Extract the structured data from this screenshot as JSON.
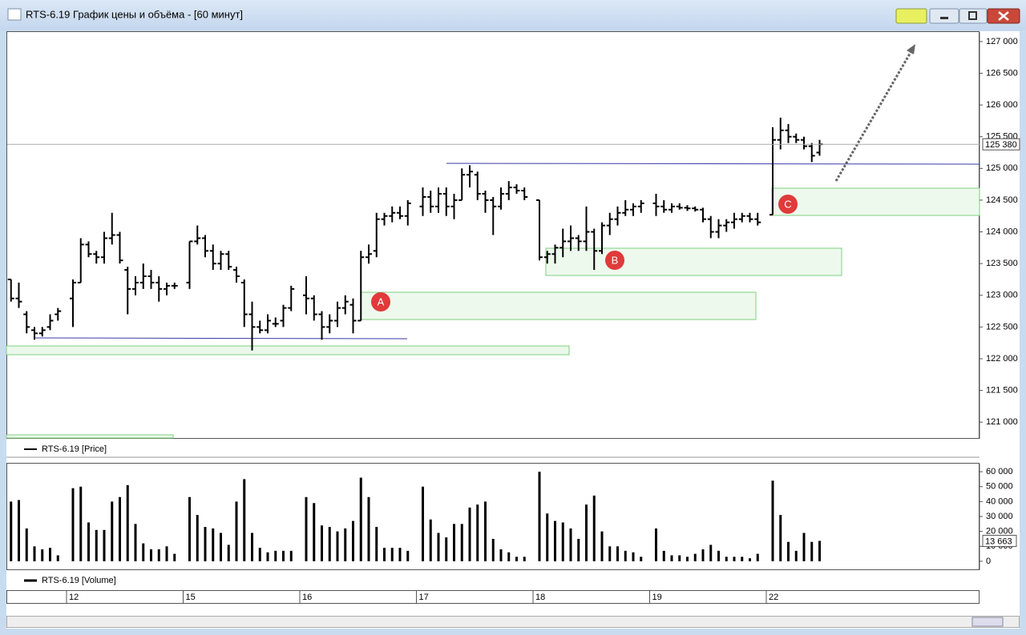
{
  "window": {
    "title": "RTS-6.19 График цены и объёма - [60 минут]"
  },
  "annotations": {
    "labels": [
      "A",
      "B",
      "C"
    ]
  },
  "x_labels": [
    "12",
    "15",
    "16",
    "17",
    "18",
    "19",
    "22"
  ],
  "chart_data": [
    {
      "type": "ohlc",
      "legend": "RTS-6.19 [Price]",
      "ylim": [
        120750,
        127150
      ],
      "yticks": [
        {
          "value": 121000,
          "label": "121 000"
        },
        {
          "value": 121500,
          "label": "121 500"
        },
        {
          "value": 122000,
          "label": "122 000"
        },
        {
          "value": 122500,
          "label": "122 500"
        },
        {
          "value": 123000,
          "label": "123 000"
        },
        {
          "value": 123500,
          "label": "123 500"
        },
        {
          "value": 124000,
          "label": "124 000"
        },
        {
          "value": 124500,
          "label": "124 500"
        },
        {
          "value": 125000,
          "label": "125 000"
        },
        {
          "value": 125500,
          "label": "125 500"
        },
        {
          "value": 126000,
          "label": "126 000"
        },
        {
          "value": 126500,
          "label": "126 500"
        },
        {
          "value": 127000,
          "label": "127 000"
        }
      ],
      "last_price": {
        "value": 125380,
        "label": "125 380"
      },
      "color": "#000000",
      "sessions": [
        [
          [
            123250,
            123250,
            122900,
            122950
          ],
          [
            122950,
            123200,
            122800,
            122900
          ],
          [
            122700,
            122750,
            122400,
            122500
          ],
          [
            122450,
            122500,
            122300,
            122400
          ],
          [
            122400,
            122500,
            122350,
            122450
          ],
          [
            122500,
            122700,
            122450,
            122600
          ],
          [
            122700,
            122800,
            122600,
            122750
          ]
        ],
        [
          [
            122950,
            123250,
            122500,
            123200
          ],
          [
            123200,
            123900,
            123200,
            123800
          ],
          [
            123800,
            123850,
            123600,
            123650
          ],
          [
            123650,
            123700,
            123500,
            123600
          ],
          [
            123600,
            124000,
            123500,
            123900
          ],
          [
            123900,
            124300,
            123800,
            123950
          ],
          [
            123950,
            124000,
            123500,
            123550
          ],
          [
            123400,
            123450,
            122700,
            123100
          ],
          [
            123100,
            123300,
            123000,
            123200
          ],
          [
            123200,
            123500,
            123100,
            123300
          ],
          [
            123300,
            123400,
            123100,
            123200
          ],
          [
            123200,
            123300,
            122900,
            123100
          ],
          [
            123100,
            123200,
            123000,
            123150
          ],
          [
            123150,
            123200,
            123100,
            123150
          ]
        ],
        [
          [
            123200,
            123850,
            123100,
            123850
          ],
          [
            123850,
            124100,
            123800,
            123900
          ],
          [
            123900,
            123950,
            123600,
            123700
          ],
          [
            123700,
            123800,
            123400,
            123500
          ],
          [
            123500,
            123700,
            123400,
            123650
          ],
          [
            123650,
            123700,
            123400,
            123450
          ],
          [
            123400,
            123450,
            123200,
            123300
          ],
          [
            123200,
            123250,
            122500,
            122700
          ],
          [
            122700,
            122900,
            122130,
            122500
          ],
          [
            122500,
            122600,
            122400,
            122450
          ],
          [
            122450,
            122700,
            122400,
            122600
          ],
          [
            122550,
            122650,
            122500,
            122550
          ],
          [
            122600,
            122850,
            122500,
            122800
          ],
          [
            122800,
            123150,
            122750,
            123100
          ]
        ],
        [
          [
            123000,
            123300,
            122700,
            122950
          ],
          [
            122950,
            123000,
            122600,
            122700
          ],
          [
            122700,
            122750,
            122300,
            122500
          ],
          [
            122500,
            122700,
            122400,
            122600
          ],
          [
            122600,
            122900,
            122500,
            122800
          ],
          [
            122800,
            123000,
            122700,
            122900
          ],
          [
            122850,
            122950,
            122400,
            122600
          ],
          [
            122600,
            123700,
            122600,
            123600
          ],
          [
            123600,
            123800,
            123500,
            123650
          ],
          [
            123700,
            124300,
            123600,
            124200
          ],
          [
            124200,
            124300,
            124100,
            124250
          ],
          [
            124250,
            124400,
            124150,
            124300
          ],
          [
            124300,
            124400,
            124200,
            124250
          ],
          [
            124250,
            124500,
            124100,
            124450
          ]
        ],
        [
          [
            124400,
            124700,
            124250,
            124550
          ],
          [
            124550,
            124650,
            124300,
            124400
          ],
          [
            124400,
            124700,
            124300,
            124600
          ],
          [
            124600,
            124700,
            124250,
            124400
          ],
          [
            124400,
            124600,
            124200,
            124500
          ],
          [
            124500,
            125000,
            124500,
            124900
          ],
          [
            124900,
            125050,
            124700,
            124950
          ],
          [
            124900,
            124950,
            124500,
            124600
          ],
          [
            124600,
            124650,
            124300,
            124500
          ],
          [
            124500,
            124550,
            123950,
            124400
          ],
          [
            124400,
            124700,
            124350,
            124600
          ],
          [
            124600,
            124800,
            124500,
            124700
          ],
          [
            124700,
            124750,
            124600,
            124650
          ],
          [
            124650,
            124700,
            124500,
            124550
          ]
        ],
        [
          [
            124500,
            124500,
            123550,
            123600
          ],
          [
            123600,
            123700,
            123500,
            123650
          ],
          [
            123650,
            123800,
            123500,
            123750
          ],
          [
            123750,
            124050,
            123600,
            123850
          ],
          [
            123850,
            124100,
            123700,
            123900
          ],
          [
            123900,
            123950,
            123700,
            123850
          ],
          [
            123850,
            124400,
            123700,
            124000
          ],
          [
            124000,
            124050,
            123400,
            123700
          ],
          [
            123700,
            124150,
            123650,
            124100
          ],
          [
            124100,
            124300,
            123950,
            124200
          ],
          [
            124200,
            124400,
            124100,
            124300
          ],
          [
            124300,
            124500,
            124250,
            124350
          ],
          [
            124350,
            124450,
            124250,
            124400
          ],
          [
            124400,
            124500,
            124300,
            124450
          ]
        ],
        [
          [
            124450,
            124600,
            124250,
            124400
          ],
          [
            124400,
            124500,
            124300,
            124350
          ],
          [
            124350,
            124450,
            124300,
            124400
          ],
          [
            124400,
            124450,
            124350,
            124380
          ],
          [
            124380,
            124420,
            124330,
            124370
          ],
          [
            124370,
            124400,
            124320,
            124350
          ],
          [
            124350,
            124380,
            124150,
            124200
          ],
          [
            124200,
            124250,
            123900,
            124000
          ],
          [
            124000,
            124200,
            123900,
            124100
          ],
          [
            124100,
            124200,
            124000,
            124150
          ],
          [
            124150,
            124300,
            124050,
            124200
          ],
          [
            124200,
            124300,
            124150,
            124250
          ],
          [
            124250,
            124300,
            124150,
            124200
          ],
          [
            124200,
            124300,
            124100,
            124150
          ]
        ],
        [
          [
            124270,
            125650,
            124270,
            125450
          ],
          [
            125450,
            125800,
            125300,
            125600
          ],
          [
            125600,
            125700,
            125400,
            125500
          ],
          [
            125500,
            125550,
            125400,
            125450
          ],
          [
            125450,
            125500,
            125300,
            125350
          ],
          [
            125350,
            125400,
            125100,
            125200
          ],
          [
            125250,
            125450,
            125200,
            125380
          ]
        ]
      ]
    },
    {
      "type": "volume",
      "legend": "RTS-6.19 [Volume]",
      "ylim": [
        -5400,
        65400
      ],
      "yticks": [
        0,
        {
          "value": 10000,
          "label": "10 000"
        },
        {
          "value": 20000,
          "label": "20 000"
        },
        {
          "value": 30000,
          "label": "30 000"
        },
        {
          "value": 40000,
          "label": "40 000"
        },
        {
          "value": 50000,
          "label": "50 000"
        },
        {
          "value": 60000,
          "label": "60 000"
        }
      ],
      "last_value": {
        "value": 13663,
        "label": "13 663"
      },
      "color": "#000000",
      "sessions": [
        [
          40000,
          41000,
          22000,
          10000,
          8000,
          9000,
          4000
        ],
        [
          49000,
          50000,
          26000,
          21000,
          21000,
          40000,
          43000,
          51000,
          25000,
          12000,
          8000,
          8000,
          10000,
          5000
        ],
        [
          43000,
          31000,
          23000,
          22000,
          19000,
          11000,
          40000,
          55000,
          19000,
          9000,
          6000,
          7000,
          7000,
          7000
        ],
        [
          43000,
          39000,
          24000,
          23000,
          20000,
          22000,
          27000,
          56000,
          43000,
          23000,
          9000,
          9000,
          9000,
          7000
        ],
        [
          50000,
          28000,
          19000,
          16000,
          25000,
          25000,
          36000,
          38000,
          40000,
          15000,
          8000,
          6000,
          3000,
          3000
        ],
        [
          60000,
          32000,
          27000,
          26000,
          22000,
          15000,
          38000,
          44000,
          20000,
          10000,
          10000,
          7000,
          6000,
          3000
        ],
        [
          22000,
          7000,
          4000,
          4000,
          3000,
          5000,
          8000,
          11000,
          7000,
          3000,
          3000,
          3000,
          2000,
          5000
        ],
        [
          54000,
          31000,
          13000,
          7000,
          19000,
          13000,
          13663
        ]
      ]
    }
  ]
}
